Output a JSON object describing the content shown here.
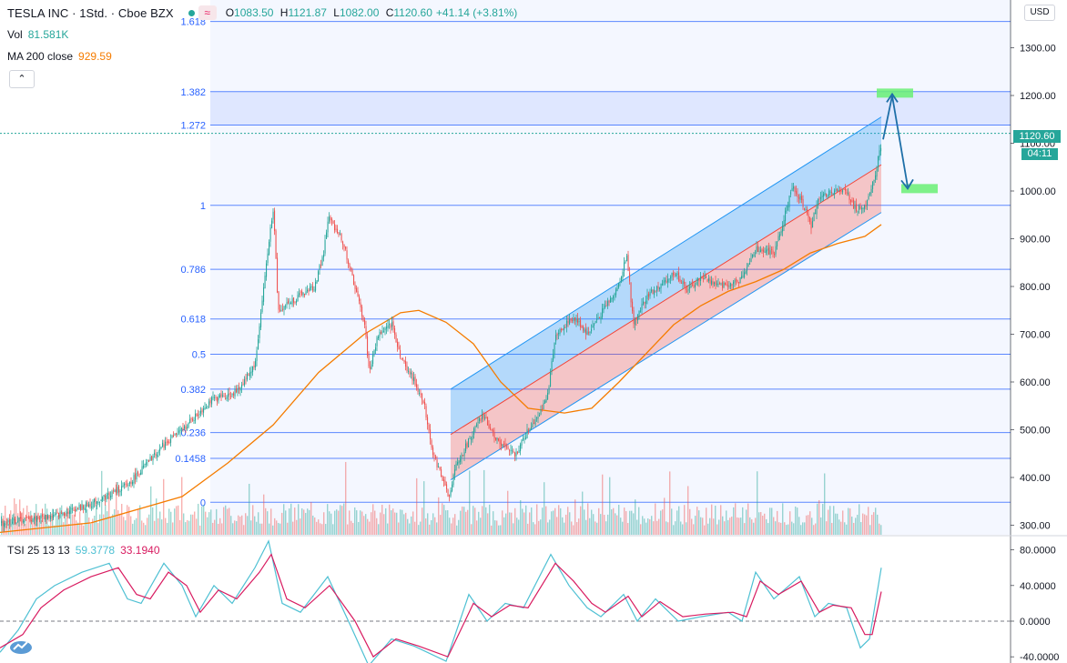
{
  "header": {
    "symbol": "TESLA INC · 1Std. · Cboe BZX",
    "open_label": "O",
    "open": "1083.50",
    "high_label": "H",
    "high": "1121.87",
    "low_label": "L",
    "low": "1082.00",
    "close_label": "C",
    "close": "1120.60",
    "change": "+41.14 (+3.81%)",
    "wave_icon": "≈"
  },
  "volume": {
    "label": "Vol",
    "value": "81.581K"
  },
  "ma": {
    "label": "MA 200 close",
    "value": "929.59"
  },
  "tsi": {
    "label": "TSI 25 13 13",
    "value1": "59.3778",
    "value2": "33.1940"
  },
  "currency": "USD",
  "last_price_tag": "1120.60",
  "countdown": "04:11",
  "colors": {
    "up": "#26a69a",
    "down": "#ef5350",
    "ma": "#f57c00",
    "fib": "#2962ff",
    "channel_upper": "#2196f3",
    "channel_lower": "#f44336",
    "tsi_line": "#4ec0d3",
    "tsi_signal": "#d81b60",
    "target": "#69f074"
  },
  "chart_data": {
    "type": "candlestick",
    "price_axis": {
      "ticks": [
        "1300.00",
        "1200.00",
        "1100.00",
        "1000.00",
        "900.00",
        "800.00",
        "700.00",
        "600.00",
        "500.00",
        "400.00",
        "300.00"
      ],
      "values": [
        1300,
        1200,
        1100,
        1000,
        900,
        800,
        700,
        600,
        500,
        400,
        300
      ],
      "range": [
        280,
        1400
      ]
    },
    "fib_levels": [
      {
        "label": "1.618",
        "price": 1355
      },
      {
        "label": "1.382",
        "price": 1208
      },
      {
        "label": "1.272",
        "price": 1138
      },
      {
        "label": "1",
        "price": 970
      },
      {
        "label": "0.786",
        "price": 836
      },
      {
        "label": "0.618",
        "price": 732
      },
      {
        "label": "0.5",
        "price": 658
      },
      {
        "label": "0.382",
        "price": 585
      },
      {
        "label": "0.236",
        "price": 494
      },
      {
        "label": "0.1458",
        "price": 440
      },
      {
        "label": "0",
        "price": 348
      }
    ],
    "price_path": [
      [
        0,
        305
      ],
      [
        60,
        320
      ],
      [
        100,
        345
      ],
      [
        140,
        385
      ],
      [
        180,
        470
      ],
      [
        200,
        500
      ],
      [
        230,
        560
      ],
      [
        260,
        580
      ],
      [
        280,
        640
      ],
      [
        295,
        900
      ],
      [
        300,
        960
      ],
      [
        305,
        750
      ],
      [
        320,
        770
      ],
      [
        345,
        800
      ],
      [
        355,
        870
      ],
      [
        360,
        945
      ],
      [
        375,
        900
      ],
      [
        385,
        830
      ],
      [
        400,
        720
      ],
      [
        405,
        620
      ],
      [
        415,
        700
      ],
      [
        430,
        720
      ],
      [
        440,
        650
      ],
      [
        455,
        600
      ],
      [
        465,
        560
      ],
      [
        475,
        450
      ],
      [
        485,
        400
      ],
      [
        492,
        360
      ],
      [
        500,
        420
      ],
      [
        515,
        480
      ],
      [
        530,
        530
      ],
      [
        545,
        480
      ],
      [
        565,
        445
      ],
      [
        580,
        500
      ],
      [
        600,
        560
      ],
      [
        610,
        700
      ],
      [
        630,
        735
      ],
      [
        645,
        700
      ],
      [
        665,
        760
      ],
      [
        680,
        805
      ],
      [
        688,
        870
      ],
      [
        695,
        720
      ],
      [
        710,
        780
      ],
      [
        725,
        800
      ],
      [
        740,
        830
      ],
      [
        755,
        790
      ],
      [
        770,
        820
      ],
      [
        790,
        800
      ],
      [
        810,
        810
      ],
      [
        830,
        880
      ],
      [
        850,
        870
      ],
      [
        870,
        1010
      ],
      [
        880,
        980
      ],
      [
        890,
        925
      ],
      [
        900,
        990
      ],
      [
        915,
        1000
      ],
      [
        930,
        995
      ],
      [
        940,
        960
      ],
      [
        950,
        970
      ],
      [
        960,
        1030
      ],
      [
        968,
        1105
      ]
    ],
    "ma200_path": [
      [
        0,
        285
      ],
      [
        100,
        305
      ],
      [
        200,
        360
      ],
      [
        250,
        430
      ],
      [
        300,
        510
      ],
      [
        350,
        620
      ],
      [
        400,
        700
      ],
      [
        440,
        745
      ],
      [
        460,
        750
      ],
      [
        490,
        725
      ],
      [
        520,
        680
      ],
      [
        550,
        600
      ],
      [
        580,
        545
      ],
      [
        620,
        535
      ],
      [
        650,
        545
      ],
      [
        680,
        600
      ],
      [
        710,
        660
      ],
      [
        740,
        720
      ],
      [
        770,
        760
      ],
      [
        800,
        790
      ],
      [
        830,
        810
      ],
      [
        860,
        835
      ],
      [
        890,
        870
      ],
      [
        920,
        890
      ],
      [
        950,
        905
      ],
      [
        968,
        929.59
      ]
    ],
    "channel": {
      "x_start": 495,
      "x_end": 968,
      "upper_start": 585,
      "mid_start": 490,
      "lower_start": 395,
      "upper_end": 1155,
      "mid_end": 1055,
      "lower_end": 955
    },
    "projection": {
      "peak_price": 1205,
      "retrace_price": 1005,
      "start_price": 1108
    },
    "tsi_axis": {
      "ticks": [
        "80.0000",
        "40.0000",
        "0.0000",
        "-40.0000"
      ],
      "values": [
        80,
        40,
        0,
        -40
      ],
      "range": [
        -47,
        95
      ]
    },
    "tsi_path": [
      [
        0,
        -35
      ],
      [
        20,
        -10
      ],
      [
        40,
        25
      ],
      [
        60,
        40
      ],
      [
        90,
        55
      ],
      [
        120,
        65
      ],
      [
        140,
        25
      ],
      [
        155,
        20
      ],
      [
        180,
        65
      ],
      [
        200,
        40
      ],
      [
        215,
        5
      ],
      [
        235,
        40
      ],
      [
        255,
        20
      ],
      [
        280,
        60
      ],
      [
        295,
        90
      ],
      [
        310,
        20
      ],
      [
        330,
        10
      ],
      [
        360,
        50
      ],
      [
        385,
        -5
      ],
      [
        405,
        -50
      ],
      [
        430,
        -20
      ],
      [
        455,
        -28
      ],
      [
        490,
        -45
      ],
      [
        515,
        30
      ],
      [
        535,
        0
      ],
      [
        555,
        20
      ],
      [
        575,
        15
      ],
      [
        605,
        75
      ],
      [
        625,
        40
      ],
      [
        645,
        15
      ],
      [
        660,
        5
      ],
      [
        685,
        30
      ],
      [
        700,
        0
      ],
      [
        720,
        25
      ],
      [
        745,
        0
      ],
      [
        770,
        5
      ],
      [
        800,
        10
      ],
      [
        815,
        0
      ],
      [
        830,
        55
      ],
      [
        850,
        25
      ],
      [
        878,
        50
      ],
      [
        895,
        5
      ],
      [
        910,
        20
      ],
      [
        930,
        15
      ],
      [
        945,
        -30
      ],
      [
        955,
        -20
      ],
      [
        968,
        60
      ]
    ],
    "tsi_signal_path": [
      [
        0,
        -30
      ],
      [
        25,
        -15
      ],
      [
        45,
        15
      ],
      [
        70,
        35
      ],
      [
        100,
        50
      ],
      [
        130,
        60
      ],
      [
        150,
        30
      ],
      [
        165,
        25
      ],
      [
        185,
        55
      ],
      [
        205,
        40
      ],
      [
        220,
        10
      ],
      [
        240,
        35
      ],
      [
        260,
        25
      ],
      [
        285,
        55
      ],
      [
        298,
        75
      ],
      [
        315,
        25
      ],
      [
        335,
        15
      ],
      [
        362,
        40
      ],
      [
        390,
        0
      ],
      [
        410,
        -40
      ],
      [
        435,
        -20
      ],
      [
        460,
        -28
      ],
      [
        492,
        -40
      ],
      [
        520,
        20
      ],
      [
        540,
        5
      ],
      [
        560,
        18
      ],
      [
        580,
        15
      ],
      [
        610,
        65
      ],
      [
        630,
        45
      ],
      [
        650,
        20
      ],
      [
        665,
        10
      ],
      [
        690,
        28
      ],
      [
        705,
        5
      ],
      [
        725,
        22
      ],
      [
        750,
        5
      ],
      [
        775,
        8
      ],
      [
        805,
        10
      ],
      [
        820,
        5
      ],
      [
        835,
        45
      ],
      [
        855,
        30
      ],
      [
        880,
        45
      ],
      [
        900,
        10
      ],
      [
        915,
        18
      ],
      [
        935,
        15
      ],
      [
        950,
        -15
      ],
      [
        958,
        -15
      ],
      [
        968,
        33.194
      ]
    ]
  }
}
